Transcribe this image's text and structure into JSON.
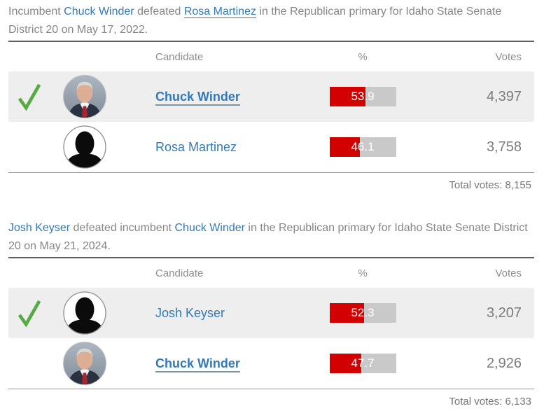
{
  "colors": {
    "bar_red": "#d30000",
    "bar_gray": "#c9c9c9",
    "row_highlight": "#eeeeee",
    "link_blue": "#337ab7",
    "body_text_gray": "#868686",
    "check_green": "#57ab45"
  },
  "sections": [
    {
      "intro": {
        "pre": "Incumbent ",
        "link1": "Chuck Winder",
        "mid": " defeated ",
        "link2": "Rosa Martinez",
        "post": " in the Republican primary for Idaho State Senate District 20 on May 17, 2022."
      },
      "table": {
        "header": {
          "candidate": "Candidate",
          "percent": "%",
          "votes": "Votes"
        },
        "rows": [
          {
            "winner": true,
            "avatar": "photo",
            "name": "Chuck Winder",
            "emphasized": true,
            "percent": 53.9,
            "percent_label": "53.9",
            "votes": "4,397"
          },
          {
            "winner": false,
            "avatar": "silhouette",
            "name": "Rosa Martinez",
            "emphasized": false,
            "percent": 46.1,
            "percent_label": "46.1",
            "votes": "3,758"
          }
        ],
        "total": "Total votes: 8,155"
      }
    },
    {
      "intro": {
        "pre": "",
        "link1": "Josh Keyser",
        "mid": " defeated incumbent ",
        "link2": "Chuck Winder",
        "post": " in the Republican primary for Idaho State Senate District 20 on May 21, 2024."
      },
      "table": {
        "header": {
          "candidate": "Candidate",
          "percent": "%",
          "votes": "Votes"
        },
        "rows": [
          {
            "winner": true,
            "avatar": "silhouette",
            "name": "Josh Keyser",
            "emphasized": false,
            "percent": 52.3,
            "percent_label": "52.3",
            "votes": "3,207"
          },
          {
            "winner": false,
            "avatar": "photo",
            "name": "Chuck Winder",
            "emphasized": true,
            "percent": 47.7,
            "percent_label": "47.7",
            "votes": "2,926"
          }
        ],
        "total": "Total votes: 6,133"
      }
    }
  ]
}
